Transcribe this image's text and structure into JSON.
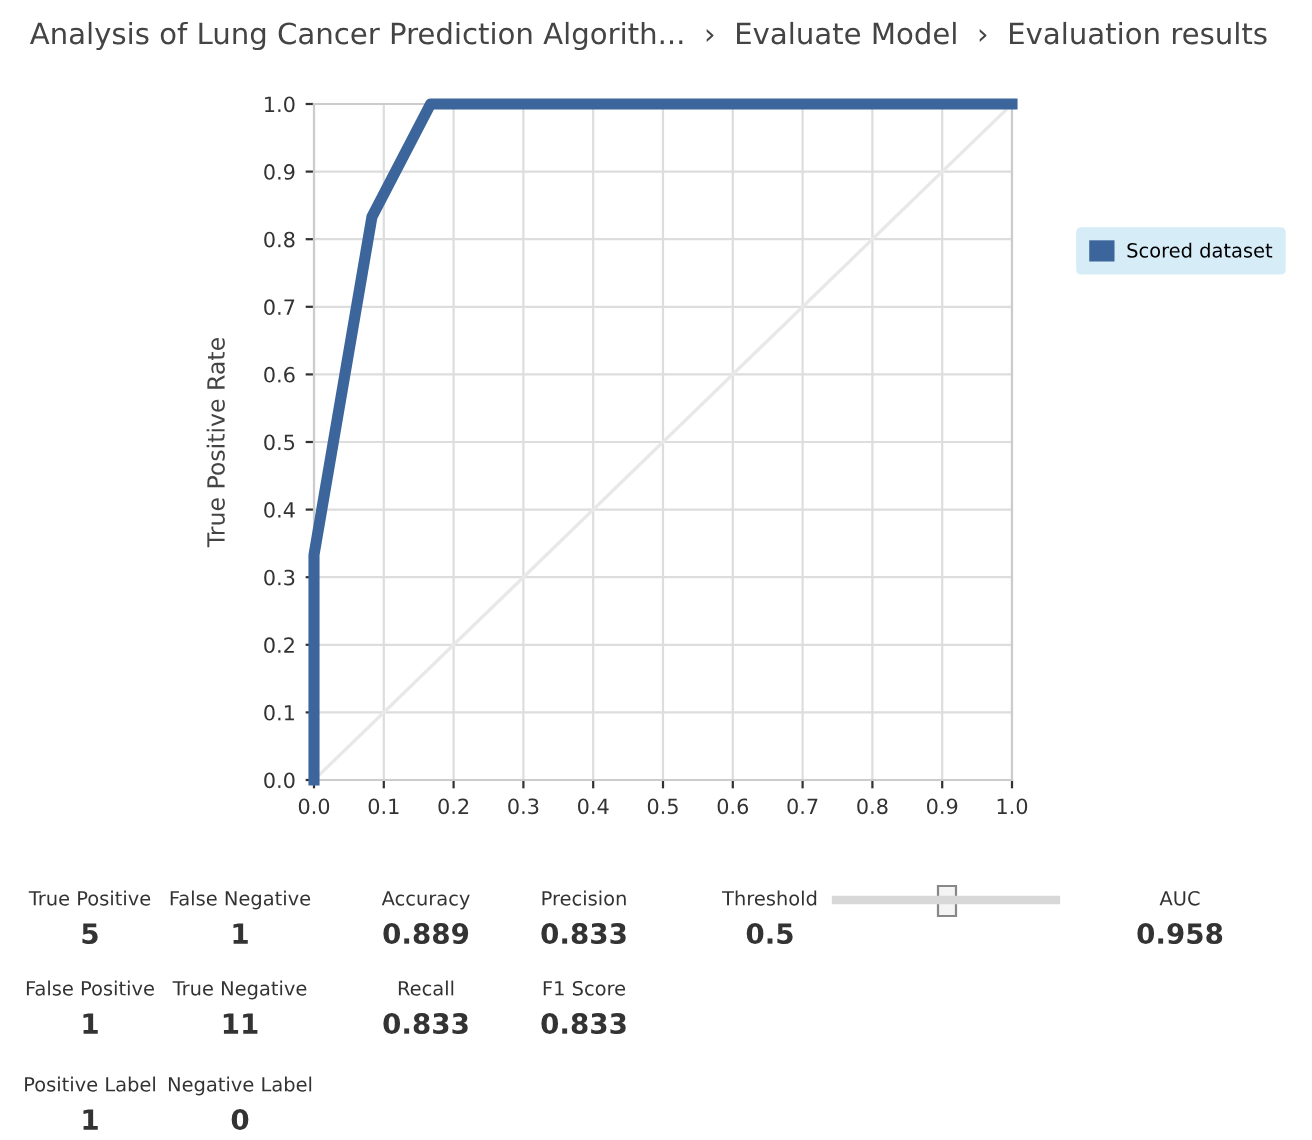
{
  "chart_data": {
    "type": "line",
    "title": "Analysis of Lung Cancer Prediction Algorith...  ›  Evaluate Model  ›  Evaluation results",
    "ylabel": "True Positive Rate",
    "series": [
      {
        "name": "Scored dataset",
        "color": "#3c669b",
        "x": [
          0.0,
          0.0,
          0.083,
          0.167,
          1.0
        ],
        "values": [
          0.0,
          0.333,
          0.833,
          1.0,
          1.0
        ]
      },
      {
        "color": "#e8e8e8",
        "x": [
          0.0,
          1.0
        ],
        "values": [
          0.0,
          1.0
        ]
      }
    ],
    "xlim": [
      0.0,
      1.0
    ],
    "ylim": [
      0.0,
      1.0
    ],
    "xticks": [
      {
        "value": 0,
        "label": "0.0"
      },
      0.1,
      0.2,
      0.3,
      0.4,
      0.5,
      0.6,
      0.7,
      0.8,
      0.9,
      {
        "value": 1,
        "label": "1.0"
      }
    ],
    "yticks": [
      {
        "value": 0,
        "label": "0.0"
      },
      0.1,
      0.2,
      0.3,
      0.4,
      0.5,
      0.6,
      0.7,
      0.8,
      0.9,
      {
        "value": 1,
        "label": "1.0"
      }
    ],
    "grid": true,
    "legend": "top right",
    "marker": "none",
    "line_style": "solid",
    "annotations": [
      "True Positive",
      "5",
      "False Negative",
      "1",
      "Accuracy",
      "0.889",
      "Precision",
      "0.833",
      "Threshold",
      "0.5",
      "AUC",
      "0.958",
      "False Positive",
      "1",
      "True Negative",
      "11",
      "Recall",
      "0.833",
      "F1 Score",
      "0.833",
      "Positive Label",
      "1",
      "Negative Label",
      "0"
    ]
  }
}
